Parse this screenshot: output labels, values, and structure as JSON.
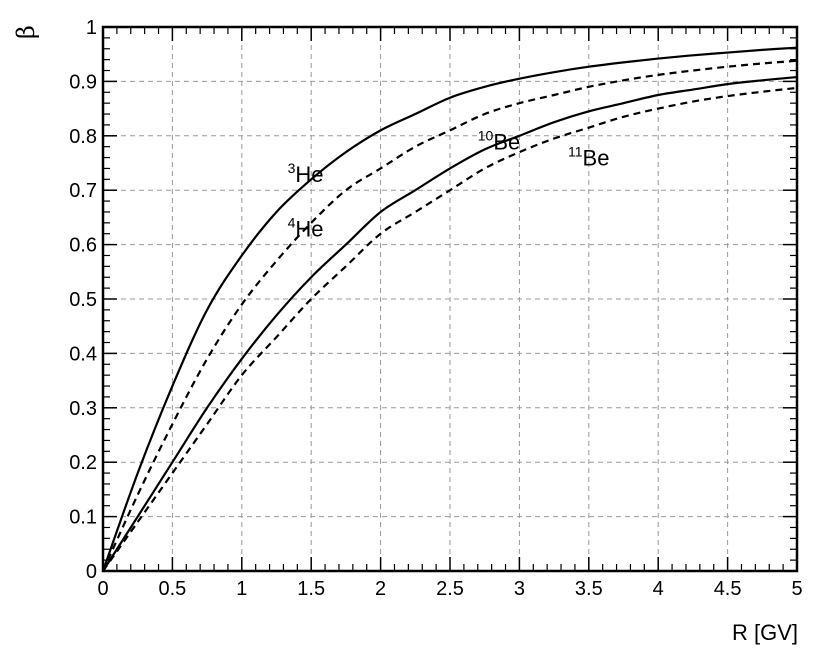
{
  "chart_data": {
    "type": "line",
    "xlabel": "R [GV]",
    "ylabel": "β",
    "xlim": [
      0,
      5
    ],
    "ylim": [
      0,
      1
    ],
    "grid": true,
    "x_ticks": [
      "0",
      "0.5",
      "1",
      "1.5",
      "2",
      "2.5",
      "3",
      "3.5",
      "4",
      "4.5",
      "5"
    ],
    "y_ticks": [
      "0",
      "0.1",
      "0.2",
      "0.3",
      "0.4",
      "0.5",
      "0.6",
      "0.7",
      "0.8",
      "0.9",
      "1"
    ],
    "x": [
      0,
      0.25,
      0.5,
      0.75,
      1,
      1.25,
      1.5,
      1.75,
      2,
      2.25,
      2.5,
      2.75,
      3,
      3.25,
      3.5,
      3.75,
      4,
      4.25,
      4.5,
      4.75,
      5
    ],
    "series": [
      {
        "name": "3He",
        "label_sup": "3",
        "label_base": "He",
        "style": "solid",
        "values": [
          0,
          0.18,
          0.34,
          0.48,
          0.58,
          0.66,
          0.72,
          0.77,
          0.81,
          0.84,
          0.87,
          0.89,
          0.905,
          0.917,
          0.927,
          0.935,
          0.942,
          0.948,
          0.953,
          0.958,
          0.962
        ]
      },
      {
        "name": "4He",
        "label_sup": "4",
        "label_base": "He",
        "style": "dashed",
        "values": [
          0,
          0.14,
          0.27,
          0.39,
          0.49,
          0.57,
          0.64,
          0.7,
          0.74,
          0.78,
          0.81,
          0.84,
          0.86,
          0.875,
          0.89,
          0.902,
          0.912,
          0.92,
          0.927,
          0.933,
          0.938
        ]
      },
      {
        "name": "10Be",
        "label_sup": "10",
        "label_base": "Be",
        "style": "solid",
        "values": [
          0,
          0.1,
          0.2,
          0.3,
          0.39,
          0.47,
          0.54,
          0.6,
          0.66,
          0.7,
          0.74,
          0.775,
          0.8,
          0.825,
          0.845,
          0.86,
          0.875,
          0.885,
          0.895,
          0.902,
          0.908
        ]
      },
      {
        "name": "11Be",
        "label_sup": "11",
        "label_base": "Be",
        "style": "dashed",
        "values": [
          0,
          0.09,
          0.18,
          0.27,
          0.36,
          0.43,
          0.5,
          0.56,
          0.62,
          0.66,
          0.7,
          0.74,
          0.77,
          0.795,
          0.815,
          0.835,
          0.85,
          0.863,
          0.873,
          0.881,
          0.888
        ]
      }
    ]
  }
}
